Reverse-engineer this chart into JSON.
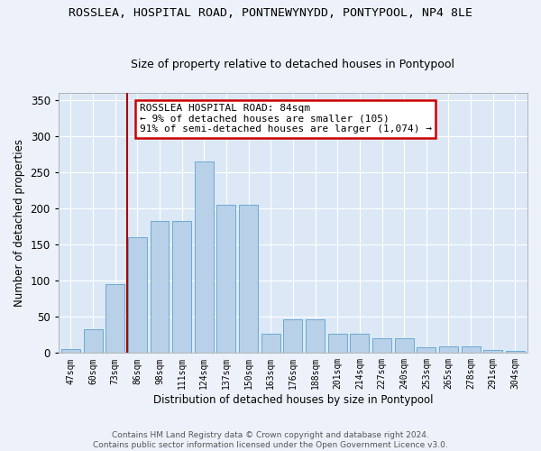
{
  "title": "ROSSLEA, HOSPITAL ROAD, PONTNEWYNYDD, PONTYPOOL, NP4 8LE",
  "subtitle": "Size of property relative to detached houses in Pontypool",
  "xlabel": "Distribution of detached houses by size in Pontypool",
  "ylabel": "Number of detached properties",
  "categories": [
    "47sqm",
    "60sqm",
    "73sqm",
    "86sqm",
    "98sqm",
    "111sqm",
    "124sqm",
    "137sqm",
    "150sqm",
    "163sqm",
    "176sqm",
    "188sqm",
    "201sqm",
    "214sqm",
    "227sqm",
    "240sqm",
    "253sqm",
    "265sqm",
    "278sqm",
    "291sqm",
    "304sqm"
  ],
  "values": [
    6,
    33,
    95,
    160,
    183,
    183,
    265,
    205,
    205,
    27,
    47,
    47,
    27,
    27,
    21,
    21,
    8,
    9,
    9,
    4,
    3
  ],
  "bar_color": "#b8d0e8",
  "bar_edge_color": "#6aaad4",
  "reference_line_color": "#aa0000",
  "annotation_text": "ROSSLEA HOSPITAL ROAD: 84sqm\n← 9% of detached houses are smaller (105)\n91% of semi-detached houses are larger (1,074) →",
  "annotation_box_color": "#cc0000",
  "ylim": [
    0,
    360
  ],
  "yticks": [
    0,
    50,
    100,
    150,
    200,
    250,
    300,
    350
  ],
  "background_color": "#dce8f5",
  "grid_color": "#ffffff",
  "fig_bg_color": "#edf2fa",
  "footer": "Contains HM Land Registry data © Crown copyright and database right 2024.\nContains public sector information licensed under the Open Government Licence v3.0."
}
